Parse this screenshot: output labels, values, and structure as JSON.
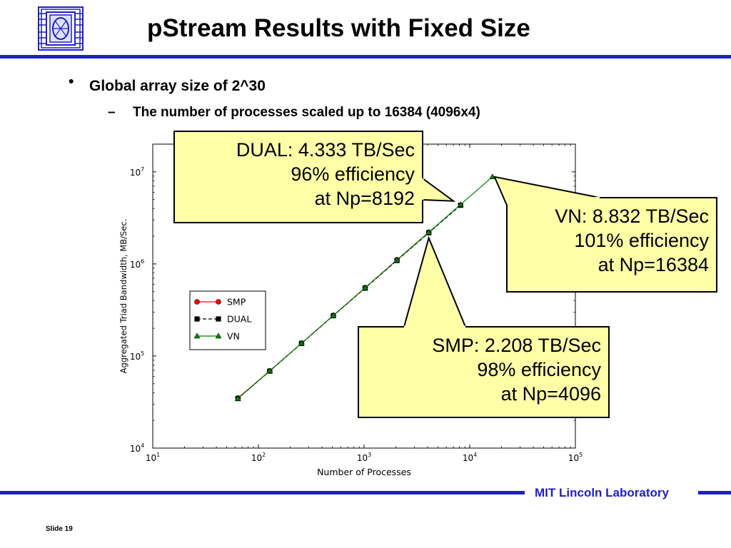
{
  "header": {
    "title": "pStream Results with Fixed Size"
  },
  "bullets": {
    "level1": "Global array size of 2^30",
    "level2": "The number of processes scaled up to 16384 (4096x4)"
  },
  "chart_data": {
    "type": "line",
    "x_scale": "log",
    "y_scale": "log",
    "xlabel": "Number of Processes",
    "ylabel": "Aggregated Triad Bandwidth, MB/Sec.",
    "xlim": [
      10,
      100000
    ],
    "ylim": [
      10000,
      20000000
    ],
    "x_tick_labels": [
      {
        "base": "10",
        "exp": "1"
      },
      {
        "base": "10",
        "exp": "2"
      },
      {
        "base": "10",
        "exp": "3"
      },
      {
        "base": "10",
        "exp": "4"
      },
      {
        "base": "10",
        "exp": "5"
      }
    ],
    "y_tick_labels": [
      {
        "base": "10",
        "exp": "4"
      },
      {
        "base": "10",
        "exp": "5"
      },
      {
        "base": "10",
        "exp": "6"
      },
      {
        "base": "10",
        "exp": "7"
      }
    ],
    "x_tick_values": [
      10,
      100,
      1000,
      10000,
      100000
    ],
    "y_tick_values": [
      10000,
      100000,
      1000000,
      10000000
    ],
    "legend_position": "center-left",
    "grid": false,
    "series": [
      {
        "name": "SMP",
        "color": "#ff0000",
        "marker": "circle",
        "dash": "solid",
        "x": [
          64,
          128,
          256,
          512,
          1024,
          2048,
          4096
        ],
        "y": [
          35000,
          69000,
          138000,
          276000,
          552000,
          1110000,
          2208000
        ]
      },
      {
        "name": "DUAL",
        "color": "#000000",
        "marker": "square",
        "dash": "dashed",
        "x": [
          64,
          128,
          256,
          512,
          1024,
          2048,
          4096,
          8192
        ],
        "y": [
          34500,
          68500,
          137000,
          274000,
          546000,
          1090000,
          2180000,
          4333000
        ]
      },
      {
        "name": "VN",
        "color": "#008000",
        "marker": "triangle",
        "dash": "solid",
        "x": [
          64,
          128,
          256,
          512,
          1024,
          2048,
          4096,
          8192,
          16384
        ],
        "y": [
          34500,
          69000,
          138000,
          276000,
          552000,
          1104000,
          2208000,
          4416000,
          8832000
        ]
      }
    ],
    "annotations": [
      {
        "id": "dual",
        "lines": [
          "DUAL: 4.333 TB/Sec",
          "96% efficiency",
          "at Np=8192"
        ],
        "target_x": 8192,
        "target_y": 4333000
      },
      {
        "id": "vn",
        "lines": [
          "VN: 8.832 TB/Sec",
          "101% efficiency",
          "at Np=16384"
        ],
        "target_x": 16384,
        "target_y": 8832000
      },
      {
        "id": "smp",
        "lines": [
          "SMP: 2.208 TB/Sec",
          "98% efficiency",
          "at Np=4096"
        ],
        "target_x": 4096,
        "target_y": 2208000
      }
    ],
    "callout_fill": "#ffffa8"
  },
  "footer": {
    "lab": "MIT Lincoln Laboratory",
    "slide": "Slide 19",
    "accent_color": "#1f1fc9"
  },
  "logo": {
    "icon": "mit-ll-logo-icon"
  }
}
